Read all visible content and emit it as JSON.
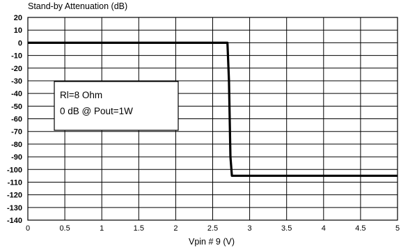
{
  "chart_data": {
    "type": "line",
    "title": "Stand-by Attenuation (dB)",
    "xlabel": "Vpin # 9 (V)",
    "ylabel": "",
    "xlim": [
      0,
      5
    ],
    "ylim": [
      -140,
      20
    ],
    "grid": true,
    "xticks": [
      0,
      0.5,
      1,
      1.5,
      2,
      2.5,
      3,
      3.5,
      4,
      4.5,
      5
    ],
    "yticks": [
      20,
      10,
      0,
      -10,
      -20,
      -30,
      -40,
      -50,
      -60,
      -70,
      -80,
      -90,
      -100,
      -110,
      -120,
      -130,
      -140
    ],
    "xtick_labels": [
      "0",
      "0.5",
      "1",
      "1.5",
      "2",
      "2.5",
      "3",
      "3.5",
      "4",
      "4.5",
      "5"
    ],
    "ytick_labels": [
      "20",
      "10",
      "0",
      "-10",
      "-20",
      "-30",
      "-40",
      "-50",
      "-60",
      "-70",
      "-80",
      "-90",
      "-100",
      "-110",
      "-120",
      "-130",
      "-140"
    ],
    "annotation": [
      "Rl=8 Ohm",
      "0 dB  @ Pout=1W"
    ],
    "series": [
      {
        "x": [
          0,
          2.5,
          2.65,
          2.7,
          2.72,
          2.74,
          2.76,
          3.0,
          4.0,
          5.0
        ],
        "y": [
          0,
          0,
          0,
          0,
          -30,
          -90,
          -105,
          -105,
          -105,
          -105
        ]
      }
    ],
    "line_color": "#000000"
  }
}
